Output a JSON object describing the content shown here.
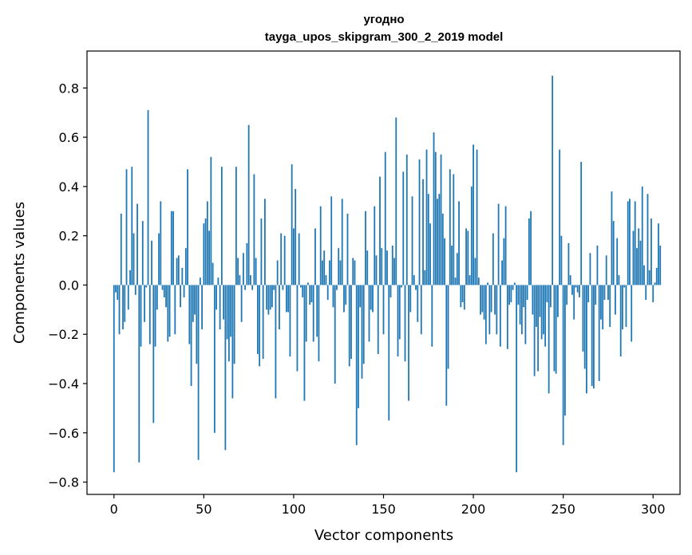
{
  "chart_data": {
    "type": "bar",
    "title_line1": "угодно",
    "title_line2": "tayga_upos_skipgram_300_2_2019 model",
    "xlabel": "Vector components",
    "ylabel": "Components values",
    "xlim": [
      -15,
      315
    ],
    "ylim": [
      -0.85,
      0.95
    ],
    "xticks": [
      0,
      50,
      100,
      150,
      200,
      250,
      300
    ],
    "xtick_labels": [
      "0",
      "50",
      "100",
      "150",
      "200",
      "250",
      "300"
    ],
    "yticks": [
      -0.8,
      -0.6,
      -0.4,
      -0.2,
      0.0,
      0.2,
      0.4,
      0.6,
      0.8
    ],
    "ytick_labels": [
      "−0.8",
      "−0.6",
      "−0.4",
      "−0.2",
      "0.0",
      "0.2",
      "0.4",
      "0.6",
      "0.8"
    ],
    "bar_color": "#1f77b4",
    "values": [
      -0.76,
      -0.03,
      -0.06,
      -0.2,
      0.29,
      -0.18,
      -0.15,
      0.47,
      -0.1,
      0.06,
      0.48,
      0.21,
      -0.04,
      0.33,
      -0.72,
      -0.25,
      0.26,
      -0.15,
      -0.01,
      0.71,
      -0.24,
      0.18,
      -0.56,
      -0.25,
      -0.1,
      0.21,
      0.34,
      -0.02,
      -0.05,
      -0.09,
      -0.23,
      -0.21,
      0.3,
      0.3,
      -0.2,
      0.11,
      0.12,
      -0.09,
      0.07,
      -0.05,
      0.15,
      0.47,
      -0.24,
      -0.41,
      -0.15,
      -0.12,
      -0.32,
      -0.71,
      0.03,
      -0.18,
      0.25,
      0.27,
      0.34,
      0.22,
      0.52,
      0.09,
      -0.6,
      -0.1,
      0.03,
      -0.18,
      0.48,
      -0.14,
      -0.67,
      -0.22,
      -0.31,
      -0.21,
      -0.46,
      -0.32,
      0.48,
      0.11,
      0.04,
      -0.15,
      0.13,
      -0.02,
      0.17,
      0.65,
      0.04,
      -0.02,
      0.45,
      0.11,
      -0.28,
      -0.33,
      0.27,
      -0.3,
      0.35,
      -0.1,
      -0.12,
      -0.1,
      -0.09,
      -0.02,
      -0.46,
      0.1,
      -0.18,
      0.21,
      -0.02,
      0.2,
      -0.11,
      -0.11,
      -0.29,
      0.49,
      0.23,
      0.39,
      -0.35,
      0.21,
      -0.01,
      -0.05,
      -0.47,
      -0.23,
      0.01,
      -0.08,
      -0.07,
      -0.23,
      0.23,
      -0.21,
      -0.31,
      0.32,
      0.1,
      0.14,
      0.04,
      -0.06,
      0.1,
      0.36,
      -0.09,
      -0.4,
      -0.02,
      0.15,
      0.1,
      0.35,
      -0.11,
      -0.08,
      0.29,
      -0.33,
      -0.3,
      0.11,
      0.1,
      -0.65,
      -0.5,
      -0.09,
      -0.38,
      -0.32,
      0.3,
      0.14,
      -0.23,
      -0.1,
      -0.11,
      0.32,
      0.12,
      -0.28,
      0.44,
      0.15,
      -0.2,
      0.54,
      0.14,
      -0.55,
      -0.05,
      0.16,
      0.11,
      0.68,
      -0.29,
      -0.22,
      -0.01,
      0.46,
      -0.31,
      0.53,
      -0.47,
      -0.11,
      0.36,
      0.04,
      -0.02,
      -0.15,
      0.51,
      -0.2,
      0.43,
      0.06,
      0.55,
      0.37,
      0.25,
      -0.25,
      0.62,
      0.54,
      0.35,
      0.37,
      0.53,
      0.29,
      0.19,
      -0.49,
      -0.34,
      0.47,
      0.16,
      0.45,
      0.03,
      0.13,
      0.34,
      -0.09,
      -0.07,
      -0.1,
      0.23,
      0.22,
      0.04,
      0.4,
      0.57,
      0.11,
      0.55,
      0.03,
      -0.12,
      -0.11,
      -0.14,
      -0.24,
      0.01,
      -0.2,
      -0.11,
      0.21,
      -0.12,
      -0.2,
      0.33,
      -0.25,
      0.1,
      0.19,
      0.32,
      -0.26,
      -0.08,
      -0.07,
      -0.02,
      0.01,
      -0.76,
      -0.08,
      -0.16,
      -0.2,
      -0.09,
      -0.24,
      -0.06,
      0.27,
      0.3,
      -0.12,
      -0.37,
      -0.17,
      -0.35,
      -0.13,
      -0.22,
      -0.2,
      -0.25,
      -0.07,
      -0.44,
      -0.09,
      0.85,
      -0.35,
      -0.36,
      -0.13,
      0.55,
      0.2,
      -0.65,
      -0.53,
      -0.08,
      0.17,
      0.04,
      -0.04,
      -0.14,
      -0.01,
      -0.03,
      -0.05,
      0.5,
      -0.27,
      -0.34,
      -0.44,
      -0.07,
      0.13,
      -0.41,
      -0.42,
      -0.08,
      0.16,
      -0.39,
      -0.14,
      -0.18,
      -0.06,
      0.12,
      -0.06,
      -0.17,
      0.38,
      0.26,
      -0.12,
      0.19,
      0.04,
      -0.29,
      -0.18,
      -0.01,
      -0.17,
      0.34,
      0.35,
      -0.23,
      0.22,
      0.34,
      0.15,
      0.23,
      0.18,
      0.4,
      0.08,
      -0.06,
      0.37,
      0.06,
      0.27,
      -0.07,
      0.01,
      0.07,
      0.25,
      0.16
    ]
  }
}
